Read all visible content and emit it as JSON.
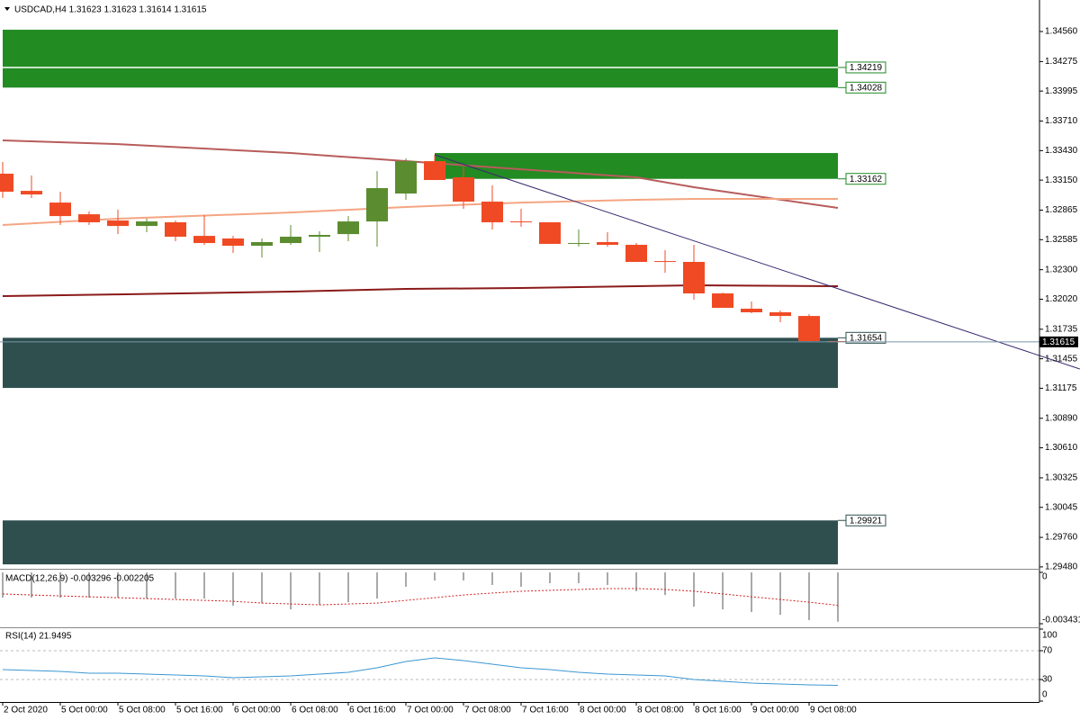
{
  "header": "USDCAD,H4  1.31623 1.31623 1.31614 1.31615",
  "chart_data": [
    {
      "type": "candlestick",
      "categories": [
        "2 Oct 2020",
        null,
        "5 Oct 00:00",
        null,
        "5 Oct 08:00",
        null,
        "5 Oct 16:00",
        null,
        "6 Oct 00:00",
        null,
        "6 Oct 08:00",
        null,
        "6 Oct 16:00",
        null,
        "7 Oct 00:00",
        null,
        "7 Oct 08:00",
        null,
        "7 Oct 16:00",
        null,
        "8 Oct 00:00",
        null,
        "8 Oct 08:00",
        null,
        "8 Oct 16:00",
        null,
        "9 Oct 00:00",
        null,
        "9 Oct 08:00",
        null
      ],
      "open": [
        1.33211,
        1.33048,
        1.32937,
        1.32826,
        1.32767,
        1.32715,
        1.3275,
        1.32621,
        1.32596,
        1.32527,
        1.32553,
        1.32613,
        1.32638,
        1.32758,
        1.33023,
        1.3333,
        1.33177,
        1.32946,
        1.32758,
        1.3275,
        1.32545,
        1.32562,
        1.32536,
        1.32382,
        1.32374,
        1.32075,
        1.3193,
        1.31896,
        1.31861,
        1.31623
      ],
      "high": [
        1.33322,
        1.33194,
        1.3304,
        1.32852,
        1.32869,
        1.32784,
        1.32767,
        1.32818,
        1.32621,
        1.32596,
        1.32724,
        1.32664,
        1.32809,
        1.33236,
        1.33356,
        1.3339,
        1.33279,
        1.331,
        1.32878,
        1.3275,
        1.32681,
        1.32656,
        1.32553,
        1.32485,
        1.32536,
        1.32083,
        1.31998,
        1.31913,
        1.31878,
        1.31623
      ],
      "low": [
        1.3298,
        1.3298,
        1.32724,
        1.32724,
        1.32638,
        1.32656,
        1.3257,
        1.32536,
        1.32459,
        1.32416,
        1.32536,
        1.32468,
        1.3257,
        1.32519,
        1.32963,
        1.33151,
        1.32878,
        1.32681,
        1.32707,
        1.32545,
        1.32519,
        1.32519,
        1.32374,
        1.32271,
        1.32015,
        1.31938,
        1.31887,
        1.31802,
        1.31614,
        1.31614
      ],
      "close": [
        1.3304,
        1.33014,
        1.32809,
        1.3275,
        1.32715,
        1.32758,
        1.32613,
        1.32553,
        1.32527,
        1.32562,
        1.32613,
        1.3263,
        1.32758,
        1.33074,
        1.3333,
        1.33151,
        1.32946,
        1.3275,
        1.3275,
        1.32545,
        1.32553,
        1.32536,
        1.32374,
        1.32374,
        1.32075,
        1.31938,
        1.31896,
        1.31861,
        1.31623,
        1.31615
      ],
      "up_color": "#5b8c30",
      "down_color": "#f04a24",
      "ylim": [
        1.29462,
        1.34842
      ],
      "yticks": [
        {
          "value": 1.3456,
          "label": "1.34560"
        },
        1.34275,
        1.33995,
        {
          "value": 1.3371,
          "label": "1.33710"
        },
        {
          "value": 1.3343,
          "label": "1.33430"
        },
        {
          "value": 1.3315,
          "label": "1.33150"
        },
        1.32865,
        1.32585,
        {
          "value": 1.323,
          "label": "1.32300"
        },
        {
          "value": 1.3202,
          "label": "1.32020"
        },
        1.31735,
        1.31455,
        1.31175,
        {
          "value": 1.3089,
          "label": "1.30890"
        },
        {
          "value": 1.3061,
          "label": "1.30610"
        },
        1.30325,
        1.30045,
        {
          "value": 1.2976,
          "label": "1.29760"
        },
        {
          "value": 1.2948,
          "label": "1.29480"
        }
      ],
      "last_price": 1.31615,
      "zones": [
        {
          "top": 1.34577,
          "bottom": 1.34028,
          "from": 0,
          "to": 29,
          "color": "#228b22"
        },
        {
          "top": 1.33407,
          "bottom": 1.33162,
          "from": 15,
          "to": 29,
          "color": "#228b22"
        },
        {
          "top": 1.31654,
          "bottom": 1.31178,
          "from": 0,
          "to": 29,
          "color": "#2f4f4f"
        },
        {
          "top": 1.29921,
          "bottom": 1.29504,
          "from": 0,
          "to": 29,
          "color": "#2f4f4f"
        }
      ],
      "levels": [
        {
          "value": 1.34219,
          "color": "#1e8a23"
        },
        {
          "value": 1.34028,
          "color": "#1e8a23"
        },
        {
          "value": 1.33162,
          "color": "#1e8a23"
        },
        {
          "value": 1.31654,
          "color": "#2f4f4f"
        },
        {
          "value": 1.29921,
          "color": "#2f4f4f"
        }
      ],
      "moving_averages": {
        "x": [
          0,
          4,
          10,
          14,
          18,
          22,
          24,
          29
        ],
        "series": [
          {
            "color": "#b85c5c",
            "values": [
              1.33527,
              1.33492,
              1.33407,
              1.3333,
              1.33253,
              1.33177,
              1.33083,
              1.32886
            ]
          },
          {
            "color": "#f4a582",
            "values": [
              1.32724,
              1.32784,
              1.32843,
              1.32895,
              1.32937,
              1.32963,
              1.32972,
              1.32972
            ]
          },
          {
            "color": "#8b1a1a",
            "values": [
              1.32049,
              1.32066,
              1.32092,
              1.32118,
              1.32126,
              1.32143,
              1.32152,
              1.32143
            ]
          }
        ]
      },
      "trendline": {
        "color": "#3c2a6e",
        "x": [
          15,
          37.4
        ],
        "y": [
          1.3339,
          1.31358
        ]
      }
    },
    {
      "type": "macd",
      "title": "MACD(12,26,9) -0.003296 -0.002205",
      "histogram": [
        -0.00169,
        -0.00169,
        -0.00169,
        -0.00169,
        -0.00169,
        -0.00175,
        -0.00175,
        -0.00175,
        -0.00223,
        -0.00205,
        -0.00247,
        -0.00217,
        -0.00199,
        -0.00175,
        -0.00096,
        -0.00054,
        -0.00054,
        -0.00084,
        -0.00096,
        -0.00072,
        -0.00072,
        -0.00084,
        -0.00126,
        -0.00151,
        -0.00229,
        -0.00247,
        -0.00265,
        -0.00283,
        -0.00319,
        -0.003296
      ],
      "signal": [
        -0.00144,
        -0.00151,
        -0.00157,
        -0.00163,
        -0.00169,
        -0.00175,
        -0.00181,
        -0.00187,
        -0.00193,
        -0.00205,
        -0.00211,
        -0.00217,
        -0.00211,
        -0.00205,
        -0.00187,
        -0.00169,
        -0.00151,
        -0.00138,
        -0.00126,
        -0.0012,
        -0.00114,
        -0.00108,
        -0.00108,
        -0.00114,
        -0.00126,
        -0.00144,
        -0.00163,
        -0.00181,
        -0.00199,
        -0.002205
      ],
      "histogram_color": "#a9a9a9",
      "signal_color": "#d02020",
      "ylim": [
        -0.00361,
        0.00012
      ],
      "yticks": [
        0,
        -0.003431
      ]
    },
    {
      "type": "rsi",
      "title": "RSI(14) 21.9495",
      "values": [
        43.8,
        42.5,
        41.3,
        38.8,
        38.8,
        37.5,
        36.3,
        35,
        32.5,
        33.8,
        35,
        37.5,
        40,
        46.3,
        55,
        60,
        56.3,
        51.3,
        46.3,
        43.8,
        40,
        37.5,
        36.3,
        35,
        30,
        27.5,
        25,
        23.8,
        22.5,
        21.9495
      ],
      "color": "#3b97d3",
      "levels": [
        70,
        30
      ],
      "ylim": [
        0,
        100
      ],
      "yticks": [
        100,
        70,
        30,
        0
      ]
    }
  ]
}
